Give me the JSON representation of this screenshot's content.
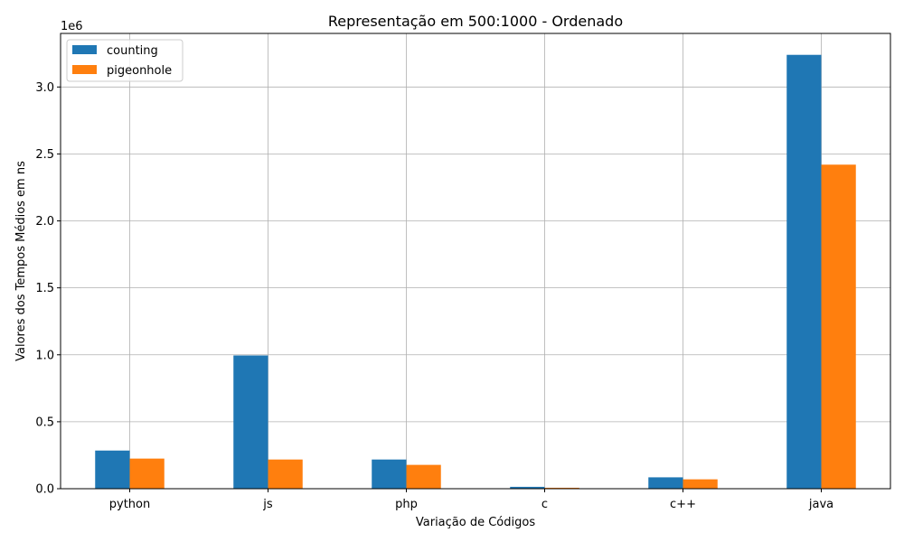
{
  "chart_data": {
    "type": "bar",
    "title": "Representação em 500:1000 - Ordenado",
    "xlabel": "Variação de Códigos",
    "ylabel": "Valores dos Tempos Médios em ns",
    "y_offset_label": "1e6",
    "categories": [
      "python",
      "js",
      "php",
      "c",
      "c++",
      "java"
    ],
    "series": [
      {
        "name": "counting",
        "color": "#1f77b4",
        "values": [
          285000,
          995000,
          218000,
          14000,
          85000,
          3240000
        ]
      },
      {
        "name": "pigeonhole",
        "color": "#ff7f0e",
        "values": [
          225000,
          218000,
          178000,
          7000,
          70000,
          2420000
        ]
      }
    ],
    "ylim": [
      0,
      3400000
    ],
    "yticks": [
      0,
      500000,
      1000000,
      1500000,
      2000000,
      2500000,
      3000000
    ],
    "ytick_labels": [
      "0.0",
      "0.5",
      "1.0",
      "1.5",
      "2.0",
      "2.5",
      "3.0"
    ],
    "grid": true,
    "legend_position": "top-left"
  }
}
